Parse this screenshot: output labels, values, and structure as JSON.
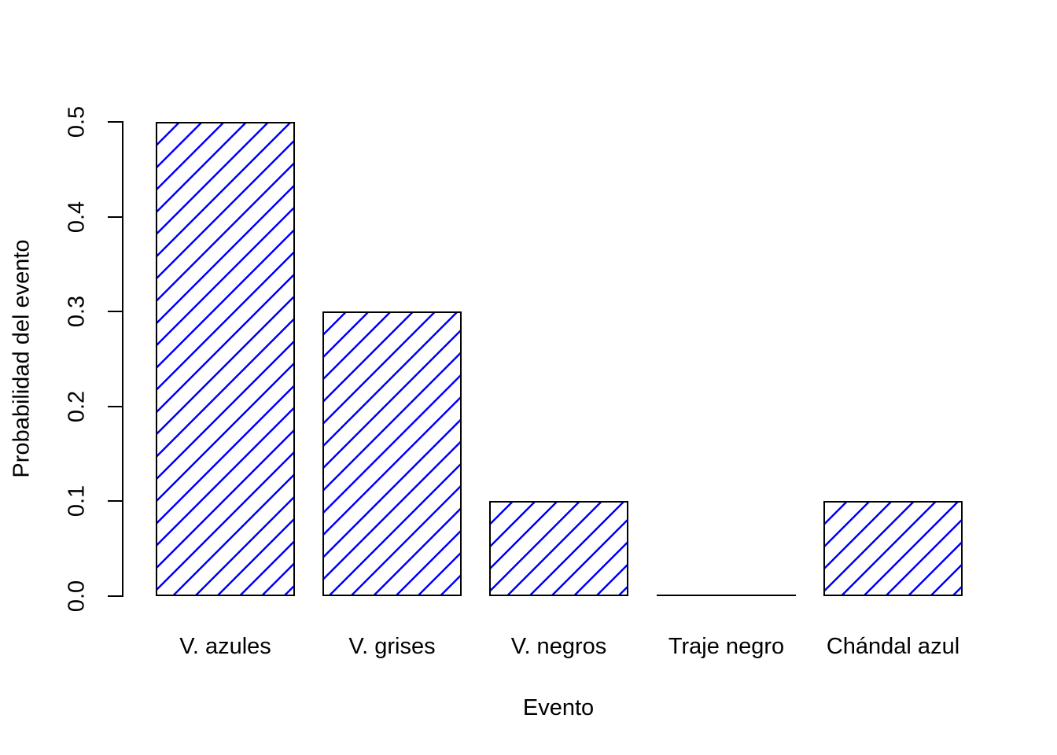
{
  "chart_data": {
    "type": "bar",
    "title": "",
    "xlabel": "Evento",
    "ylabel": "Probabilidad del evento",
    "categories": [
      "V. azules",
      "V. grises",
      "V. negros",
      "Traje negro",
      "Chándal azul"
    ],
    "values": [
      0.5,
      0.3,
      0.1,
      0.0,
      0.1
    ],
    "ylim": [
      0.0,
      0.5
    ],
    "yticks": [
      0.0,
      0.1,
      0.2,
      0.3,
      0.4,
      0.5
    ],
    "ytick_labels": [
      "0.0",
      "0.1",
      "0.2",
      "0.3",
      "0.4",
      "0.5"
    ],
    "grid": false,
    "legend": "none",
    "bar_fill": "transparent",
    "bar_border_color": "#000000",
    "hatch_color": "#0000FF",
    "hatch_style": "diagonal-45-forward-slash",
    "axis_color": "#000000",
    "text_color": "#000000",
    "background": "#FFFFFF"
  }
}
